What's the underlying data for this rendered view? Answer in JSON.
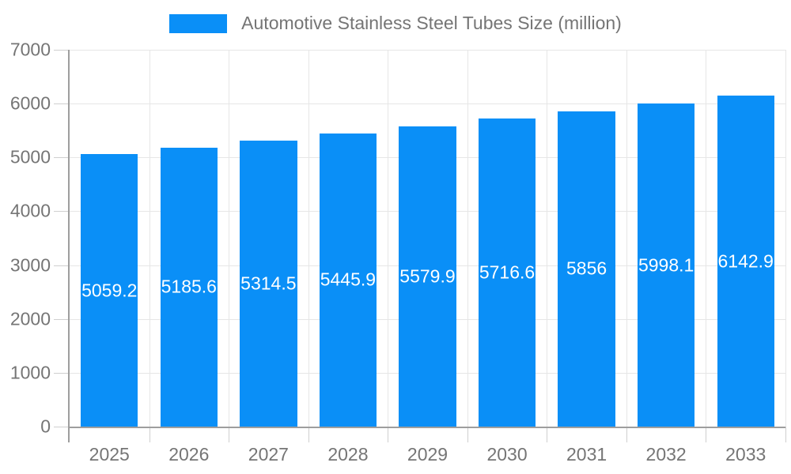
{
  "chart_data": {
    "type": "bar",
    "categories": [
      "2025",
      "2026",
      "2027",
      "2028",
      "2029",
      "2030",
      "2031",
      "2032",
      "2033"
    ],
    "series": [
      {
        "name": "Automotive Stainless Steel Tubes Size (million)",
        "values": [
          5059.2,
          5185.6,
          5314.5,
          5445.9,
          5579.9,
          5716.6,
          5856,
          5998.1,
          6142.9
        ],
        "value_labels": [
          "5059.2",
          "5185.6",
          "5314.5",
          "5445.9",
          "5579.9",
          "5716.6",
          "5856",
          "5998.1",
          "6142.9"
        ]
      }
    ],
    "title": "",
    "xlabel": "",
    "ylabel": "",
    "ylim": [
      0,
      7000
    ],
    "ytick_interval": 1000,
    "grid": true,
    "legend_position": "top",
    "value_labels_position": "inside-center"
  },
  "colors": {
    "bar": "#0a8ff7",
    "value_label_text": "#ffffff",
    "axis_text": "#757575",
    "gridline": "#e6e6e6",
    "tick": "#cfcfcf",
    "axis_line": "#9e9e9e",
    "background": "#ffffff"
  }
}
